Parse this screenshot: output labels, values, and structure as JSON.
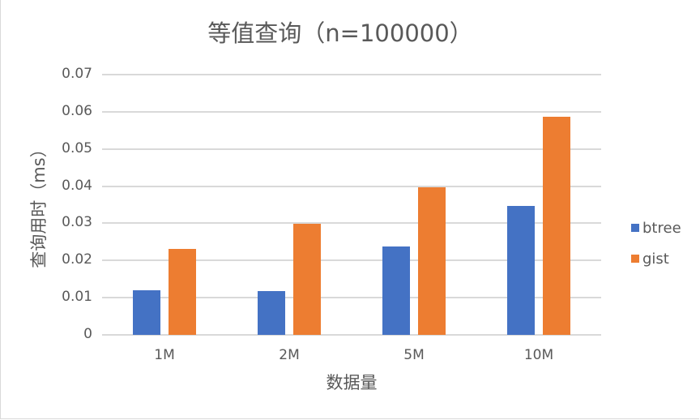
{
  "chart_data": {
    "type": "bar",
    "title": "等值查询（n=100000）",
    "xlabel": "数据量",
    "ylabel": "查询用时（ms）",
    "categories": [
      "1M",
      "2M",
      "5M",
      "10M"
    ],
    "series": [
      {
        "name": "btree",
        "color": "#4472C4",
        "values": [
          0.012,
          0.0118,
          0.0237,
          0.0346
        ]
      },
      {
        "name": "gist",
        "color": "#ED7D31",
        "values": [
          0.0231,
          0.0299,
          0.0397,
          0.0586
        ]
      }
    ],
    "ylim": [
      0,
      0.07
    ],
    "yticks": [
      "0",
      "0.01",
      "0.02",
      "0.03",
      "0.04",
      "0.05",
      "0.06",
      "0.07"
    ],
    "grid": true,
    "legend_position": "right"
  },
  "title": "等值查询（n=100000）",
  "xlabel": "数据量",
  "ylabel": "查询用时（ms）",
  "legend": [
    {
      "label": "btree",
      "color": "#4472C4"
    },
    {
      "label": "gist",
      "color": "#ED7D31"
    }
  ]
}
